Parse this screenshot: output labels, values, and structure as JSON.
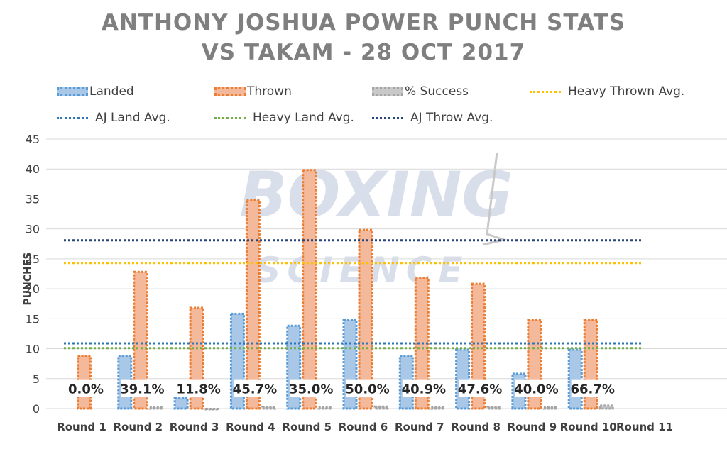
{
  "chart_data": {
    "type": "bar",
    "title_line1": "ANTHONY JOSHUA POWER PUNCH STATS",
    "title_line2": "VS TAKAM - 28 OCT 2017",
    "ylabel": "PUNCHES",
    "ylim": [
      0,
      45
    ],
    "yticks": [
      "0",
      "5",
      "10",
      "15",
      "20",
      "25",
      "30",
      "35",
      "40",
      "45"
    ],
    "categories": [
      "Round 1",
      "Round 2",
      "Round 3",
      "Round 4",
      "Round 5",
      "Round 6",
      "Round 7",
      "Round 8",
      "Round 9",
      "Round 10",
      "Round 11"
    ],
    "series": [
      {
        "name": "Landed",
        "values": [
          0,
          9,
          2,
          16,
          14,
          15,
          9,
          10,
          6,
          10,
          null
        ],
        "color": "#a9c8e8",
        "border": "#5b9bd5"
      },
      {
        "name": "Thrown",
        "values": [
          9,
          23,
          17,
          35,
          40,
          30,
          22,
          21,
          15,
          15,
          null
        ],
        "color": "#f4b89a",
        "border": "#ed7d31"
      },
      {
        "name": "% Success",
        "values": [
          0.0,
          0.391,
          0.118,
          0.457,
          0.35,
          0.5,
          0.409,
          0.476,
          0.4,
          0.667,
          null
        ],
        "color": "#c9c9c9",
        "border": "#a5a5a5"
      }
    ],
    "pct_labels": [
      "0.0%",
      "39.1%",
      "11.8%",
      "45.7%",
      "35.0%",
      "50.0%",
      "40.9%",
      "47.6%",
      "40.0%",
      "66.7%"
    ],
    "reference_lines": [
      {
        "name": "Heavy Thrown Avg.",
        "value": 24.3,
        "color": "#ffc000"
      },
      {
        "name": "AJ Land Avg.",
        "value": 10.9,
        "color": "#2e75b6"
      },
      {
        "name": "Heavy Land Avg.",
        "value": 10.1,
        "color": "#70ad47"
      },
      {
        "name": "AJ Throw Avg.",
        "value": 28.1,
        "color": "#264478"
      }
    ],
    "grid": true,
    "legend_position": "top"
  },
  "legend": {
    "landed": "Landed",
    "thrown": "Thrown",
    "success": "% Success",
    "heavy_thrown": "Heavy Thrown Avg.",
    "aj_land": "AJ Land Avg.",
    "heavy_land": "Heavy Land Avg.",
    "aj_throw": "AJ Throw Avg."
  },
  "watermark": {
    "line1": "BOXING",
    "line2": "SCIENCE"
  }
}
